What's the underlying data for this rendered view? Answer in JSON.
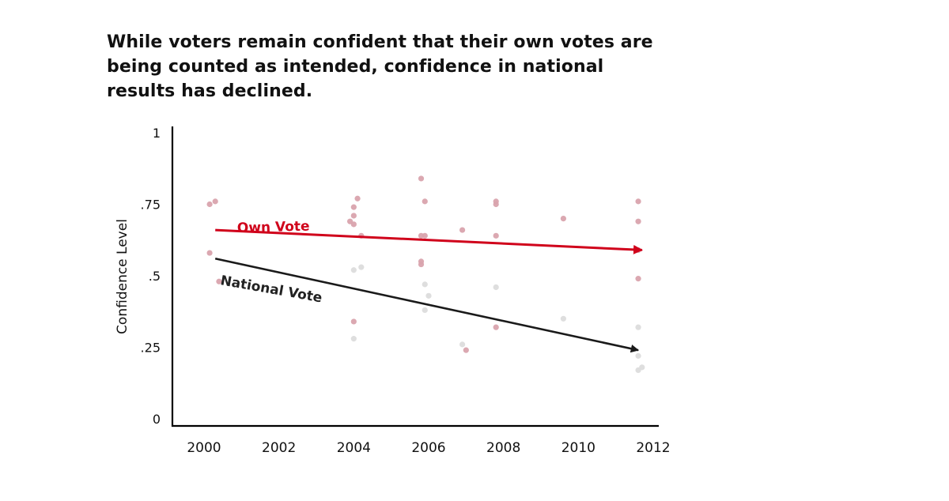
{
  "headline": {
    "line1": "While voters remain confident that their own votes are",
    "line2": "being counted as intended, confidence in national",
    "line3": "results has declined."
  },
  "chart_data": {
    "type": "scatter",
    "title": "While voters remain confident that their own votes are being counted as intended, confidence in national results has declined.",
    "xlabel": "",
    "ylabel": "Confidence Level",
    "xlim": [
      2000,
      2012
    ],
    "ylim": [
      0,
      1
    ],
    "x_ticks": [
      2000,
      2002,
      2004,
      2006,
      2008,
      2010,
      2012
    ],
    "x_tick_labels": [
      "2000",
      "2002",
      "2004",
      "2006",
      "2008",
      "2010",
      "2012"
    ],
    "y_ticks": [
      0,
      0.25,
      0.5,
      0.75,
      1
    ],
    "y_tick_labels": [
      "0",
      ".25",
      ".5",
      ".75",
      "1"
    ],
    "grid": false,
    "series": [
      {
        "name": "Own Vote",
        "color": "#d9a3ad",
        "points": [
          [
            2000.15,
            0.75
          ],
          [
            2000.3,
            0.76
          ],
          [
            2000.15,
            0.58
          ],
          [
            2000.4,
            0.48
          ],
          [
            2003.9,
            0.69
          ],
          [
            2004.0,
            0.74
          ],
          [
            2004.1,
            0.77
          ],
          [
            2004.0,
            0.71
          ],
          [
            2004.0,
            0.68
          ],
          [
            2004.2,
            0.64
          ],
          [
            2004.0,
            0.34
          ],
          [
            2005.8,
            0.84
          ],
          [
            2005.9,
            0.76
          ],
          [
            2005.8,
            0.64
          ],
          [
            2005.9,
            0.64
          ],
          [
            2005.8,
            0.55
          ],
          [
            2005.8,
            0.54
          ],
          [
            2006.9,
            0.66
          ],
          [
            2007.0,
            0.24
          ],
          [
            2007.8,
            0.76
          ],
          [
            2007.8,
            0.75
          ],
          [
            2007.8,
            0.64
          ],
          [
            2007.8,
            0.32
          ],
          [
            2009.6,
            0.7
          ],
          [
            2011.6,
            0.76
          ],
          [
            2011.6,
            0.69
          ],
          [
            2011.6,
            0.59
          ],
          [
            2011.6,
            0.49
          ]
        ]
      },
      {
        "name": "National Vote",
        "color": "#dcdcdc",
        "points": [
          [
            2004.0,
            0.52
          ],
          [
            2004.2,
            0.53
          ],
          [
            2004.0,
            0.28
          ],
          [
            2005.9,
            0.47
          ],
          [
            2006.0,
            0.43
          ],
          [
            2005.9,
            0.38
          ],
          [
            2006.9,
            0.26
          ],
          [
            2007.8,
            0.46
          ],
          [
            2009.6,
            0.35
          ],
          [
            2011.6,
            0.32
          ],
          [
            2011.6,
            0.22
          ],
          [
            2011.6,
            0.17
          ],
          [
            2011.7,
            0.18
          ]
        ]
      }
    ],
    "trend_lines": [
      {
        "name": "Own Vote",
        "color": "#d0021b",
        "from": [
          2000.3,
          0.66
        ],
        "to": [
          2011.7,
          0.59
        ]
      },
      {
        "name": "National Vote",
        "color": "#1a1a1a",
        "from": [
          2000.3,
          0.56
        ],
        "to": [
          2011.6,
          0.24
        ]
      }
    ]
  }
}
